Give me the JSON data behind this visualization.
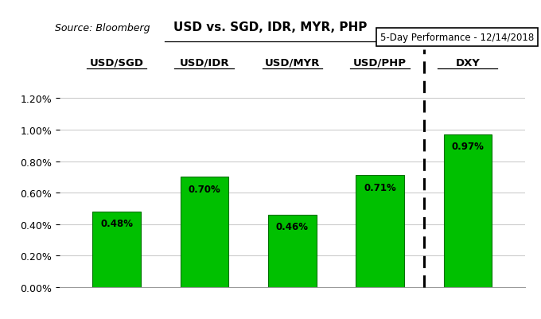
{
  "categories": [
    "USD/SGD",
    "USD/IDR",
    "USD/MYR",
    "USD/PHP",
    "DXY"
  ],
  "values": [
    0.0048,
    0.007,
    0.0046,
    0.0071,
    0.0097
  ],
  "labels": [
    "0.48%",
    "0.70%",
    "0.46%",
    "0.71%",
    "0.97%"
  ],
  "bar_color": "#00C000",
  "bar_edge_color": "#007000",
  "title_main": "USD vs. SGD, IDR, MYR, PHP",
  "title_source": "Source: Bloomberg",
  "title_right": "5-Day Performance - 12/14/2018",
  "ylim": [
    0,
    0.0128
  ],
  "yticks": [
    0.0,
    0.002,
    0.004,
    0.006,
    0.008,
    0.01,
    0.012
  ],
  "ytick_labels": [
    "0.00%",
    "0.20%",
    "0.40%",
    "0.60%",
    "0.80%",
    "1.00%",
    "1.20%"
  ],
  "background_color": "#FFFFFF",
  "grid_color": "#CCCCCC",
  "bar_width": 0.55,
  "fig_width": 6.8,
  "fig_height": 4.02,
  "dpi": 100
}
